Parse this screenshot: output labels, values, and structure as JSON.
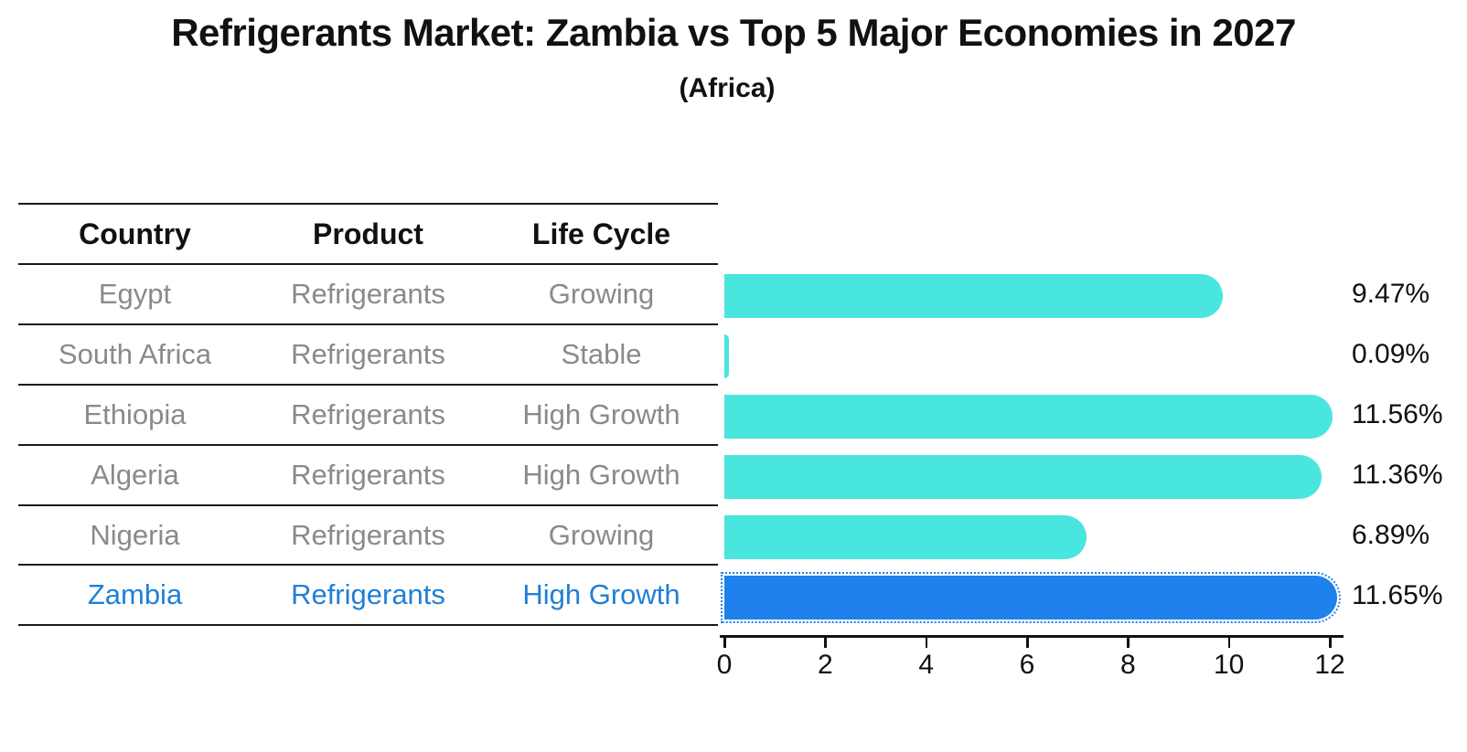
{
  "chart": {
    "title": "Refrigerants Market: Zambia vs Top 5 Major Economies in 2027",
    "subtitle": "(Africa)"
  },
  "table": {
    "headers": [
      "Country",
      "Product",
      "Life Cycle"
    ]
  },
  "rows": [
    {
      "country": "Egypt",
      "product": "Refrigerants",
      "life_cycle": "Growing",
      "value": 9.47,
      "value_label": "9.47%",
      "highlight": false
    },
    {
      "country": "South Africa",
      "product": "Refrigerants",
      "life_cycle": "Stable",
      "value": 0.09,
      "value_label": "0.09%",
      "highlight": false
    },
    {
      "country": "Ethiopia",
      "product": "Refrigerants",
      "life_cycle": "High Growth",
      "value": 11.56,
      "value_label": "11.56%",
      "highlight": false
    },
    {
      "country": "Algeria",
      "product": "Refrigerants",
      "life_cycle": "High Growth",
      "value": 11.36,
      "value_label": "11.36%",
      "highlight": false
    },
    {
      "country": "Nigeria",
      "product": "Refrigerants",
      "life_cycle": "Growing",
      "value": 6.89,
      "value_label": "6.89%",
      "highlight": false
    },
    {
      "country": "Zambia",
      "product": "Refrigerants",
      "life_cycle": "High Growth",
      "value": 11.65,
      "value_label": "11.65%",
      "highlight": true
    }
  ],
  "chart_data": {
    "type": "bar",
    "orientation": "horizontal",
    "title": "Refrigerants Market: Zambia vs Top 5 Major Economies in 2027",
    "subtitle": "(Africa)",
    "categories": [
      "Egypt",
      "South Africa",
      "Ethiopia",
      "Algeria",
      "Nigeria",
      "Zambia"
    ],
    "values": [
      9.47,
      0.09,
      11.56,
      11.36,
      6.89,
      11.65
    ],
    "value_labels": [
      "9.47%",
      "0.09%",
      "11.56%",
      "11.36%",
      "6.89%",
      "11.65%"
    ],
    "xlim": [
      0,
      12
    ],
    "x_ticks": [
      0,
      2,
      4,
      6,
      8,
      10,
      12
    ],
    "grid": false,
    "legend": false,
    "highlight_category": "Zambia"
  },
  "colors": {
    "bar": "#48E6DE",
    "highlight_bar": "#1E81EC",
    "highlight_text": "#1F7FD8",
    "cell_text": "#8A8A8A",
    "header_text": "#111111",
    "line": "#1A1A1A",
    "label_text": "#111111"
  }
}
